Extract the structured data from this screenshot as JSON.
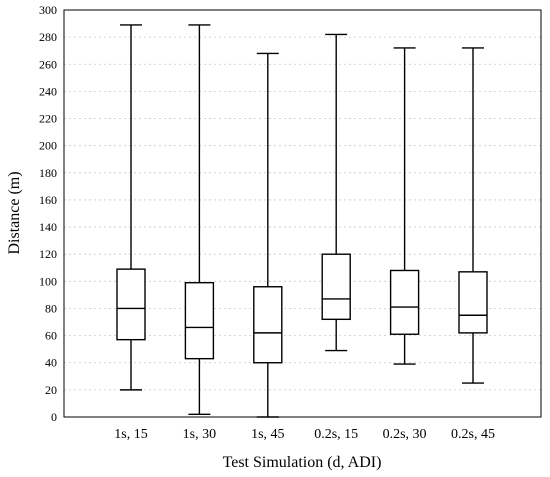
{
  "chart_data": {
    "type": "box",
    "xlabel": "Test Simulation (d, ADI)",
    "ylabel": "Distance (m)",
    "ylim": [
      0,
      300
    ],
    "ytick_step": 20,
    "yticks": [
      "0",
      "20",
      "40",
      "60",
      "80",
      "100",
      "120",
      "140",
      "160",
      "180",
      "200",
      "220",
      "240",
      "260",
      "280",
      "300"
    ],
    "grid": true,
    "categories": [
      "1s, 15",
      "1s, 30",
      "1s, 45",
      "0.2s, 15",
      "0.2s, 30",
      "0.2s, 45"
    ],
    "boxes": [
      {
        "min": 20,
        "q1": 57,
        "median": 80,
        "q3": 109,
        "max": 289
      },
      {
        "min": 2,
        "q1": 43,
        "median": 66,
        "q3": 99,
        "max": 289
      },
      {
        "min": 0,
        "q1": 40,
        "median": 62,
        "q3": 96,
        "max": 268
      },
      {
        "min": 49,
        "q1": 72,
        "median": 87,
        "q3": 120,
        "max": 282
      },
      {
        "min": 39,
        "q1": 61,
        "median": 81,
        "q3": 108,
        "max": 272
      },
      {
        "min": 25,
        "q1": 62,
        "median": 75,
        "q3": 107,
        "max": 272
      }
    ]
  }
}
